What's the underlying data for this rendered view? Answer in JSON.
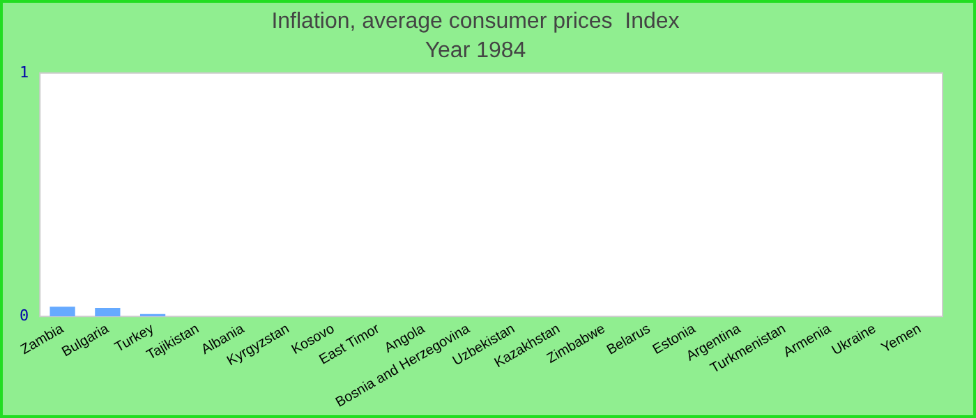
{
  "chart_data": {
    "type": "bar",
    "title": "Inflation, average consumer prices  Index",
    "subtitle": "Year 1984",
    "categories": [
      "Zambia",
      "Bulgaria",
      "Turkey",
      "Tajikistan",
      "Albania",
      "Kyrgyzstan",
      "Kosovo",
      "East Timor",
      "Angola",
      "Bosnia and Herzegovina",
      "Uzbekistan",
      "Kazakhstan",
      "Zimbabwe",
      "Belarus",
      "Estonia",
      "Argentina",
      "Turkmenistan",
      "Armenia",
      "Ukraine",
      "Yemen"
    ],
    "values": [
      0.04,
      0.035,
      0.01,
      0,
      0,
      0,
      0,
      0,
      0,
      0,
      0,
      0,
      0,
      0,
      0,
      0,
      0,
      0,
      0,
      0
    ],
    "color": "#66aaff",
    "ylim": [
      0,
      1
    ],
    "yticks": [
      0,
      1
    ],
    "grid": false,
    "legend": false
  }
}
